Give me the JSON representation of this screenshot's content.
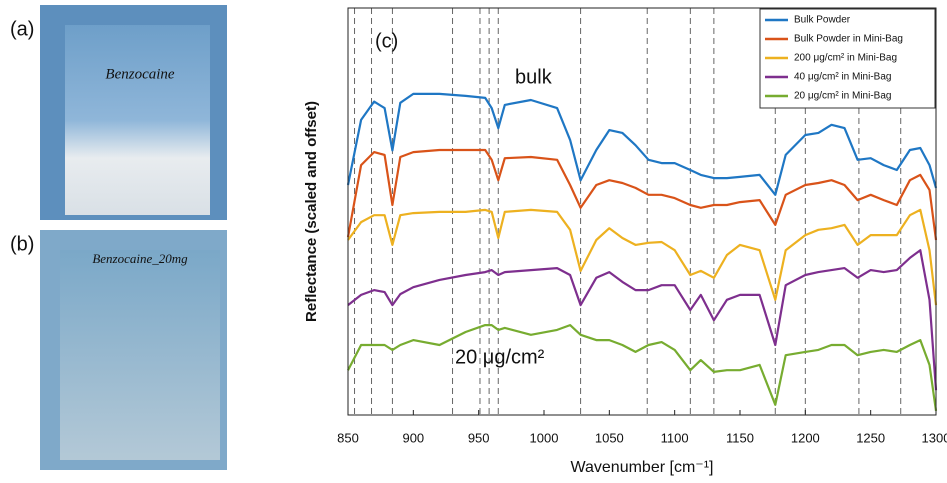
{
  "panel_labels": {
    "a": "(a)",
    "b": "(b)"
  },
  "photos": {
    "a": "Benzocaine",
    "b": "Benzocaine_20mg"
  },
  "chart_data": {
    "type": "line",
    "ylabel": "Reflectance (scaled and offset)",
    "xlabel": "Wavenumber [cm⁻¹]",
    "annotations": [
      "(c)",
      "bulk",
      "20 μg/cm²"
    ],
    "xlim": [
      850,
      1300
    ],
    "xticks": [
      850,
      900,
      950,
      1000,
      1050,
      1100,
      1150,
      1200,
      1250,
      1300
    ],
    "ylim": [
      0,
      100
    ],
    "reference_lines": [
      855,
      868,
      884,
      930,
      951,
      958,
      965,
      1028,
      1079,
      1112,
      1130,
      1177,
      1200,
      1241,
      1273
    ],
    "legend": "upper right",
    "x": [
      850,
      860,
      870,
      878,
      884,
      890,
      900,
      920,
      940,
      955,
      960,
      965,
      970,
      990,
      1010,
      1020,
      1028,
      1040,
      1050,
      1060,
      1070,
      1080,
      1090,
      1100,
      1112,
      1120,
      1130,
      1140,
      1150,
      1165,
      1177,
      1185,
      1200,
      1210,
      1220,
      1230,
      1240,
      1250,
      1260,
      1270,
      1280,
      1288,
      1295,
      1300
    ],
    "series": [
      {
        "name": "Bulk Powder",
        "color": "#1f77c4",
        "values": [
          56.5,
          72.5,
          77,
          75.4,
          65,
          76.7,
          78.9,
          78.9,
          78.4,
          77.9,
          75.4,
          70.5,
          76.2,
          77.4,
          75.4,
          67.6,
          57.7,
          65.1,
          70,
          69.3,
          66.3,
          62.7,
          61.9,
          61.9,
          60.2,
          59,
          58.2,
          58.2,
          58.5,
          59,
          54.1,
          63.9,
          68.8,
          69.3,
          71.3,
          70.5,
          62.7,
          63.1,
          61.4,
          60.2,
          65.1,
          65.6,
          61.4,
          55.8
        ]
      },
      {
        "name": "Bulk Powder in Mini-Bag",
        "color": "#d95319",
        "values": [
          43.7,
          61.4,
          64.6,
          63.9,
          51.6,
          63.4,
          64.6,
          65.1,
          65.1,
          65.1,
          62.7,
          57.7,
          63.1,
          63.4,
          62.7,
          56.5,
          50.9,
          56.5,
          57.7,
          57,
          55.8,
          54.1,
          54.1,
          53.3,
          51.6,
          50.9,
          51.6,
          51.6,
          52.3,
          52.8,
          46.7,
          54.1,
          56.5,
          57,
          57.7,
          56.5,
          52.8,
          54.1,
          52.8,
          51.6,
          57.7,
          59,
          55.3,
          43
        ]
      },
      {
        "name": "200 μg/cm² in Mini-Bag",
        "color": "#edb120",
        "values": [
          43,
          47.4,
          49.1,
          49.1,
          41.8,
          49.1,
          49.6,
          49.9,
          49.9,
          50.4,
          49.9,
          43.5,
          49.9,
          50.4,
          49.9,
          45.5,
          35.4,
          43,
          45.9,
          43.5,
          41.8,
          42.3,
          42.5,
          40.5,
          34.4,
          35.4,
          33.7,
          39.3,
          41.8,
          40.5,
          28.3,
          40.5,
          44.2,
          45.5,
          45.9,
          46.7,
          41.8,
          44.2,
          44.2,
          44.2,
          49.1,
          50.4,
          40.5,
          27
        ]
      },
      {
        "name": "40 μg/cm² in Mini-Bag",
        "color": "#7e2f8e",
        "values": [
          27,
          29.5,
          30.7,
          30.2,
          27,
          29.7,
          31.4,
          33.2,
          34.4,
          35.1,
          35.6,
          34.4,
          35.1,
          35.6,
          36.1,
          34.4,
          27,
          33.7,
          35.1,
          32.7,
          30.7,
          30.7,
          31.9,
          31.9,
          25.8,
          29.5,
          23.3,
          28.3,
          29.5,
          29.5,
          17.2,
          31.9,
          34.4,
          35.1,
          35.6,
          36.1,
          33.7,
          35.6,
          35.1,
          35.6,
          38.6,
          40.5,
          28.3,
          6.1
        ]
      },
      {
        "name": "20 μg/cm² in Mini-Bag",
        "color": "#77ac30",
        "values": [
          11,
          17.2,
          17.2,
          17.2,
          16,
          17.2,
          18.4,
          17.2,
          20.4,
          22.1,
          22.1,
          20.9,
          21.4,
          19.7,
          20.9,
          22.1,
          19.7,
          18.4,
          18.4,
          17.2,
          15.5,
          17.2,
          17.9,
          16,
          11,
          13.5,
          10.6,
          11,
          11,
          12.3,
          2.5,
          14.7,
          15.5,
          16,
          17.2,
          17.2,
          14.7,
          15.5,
          16,
          15.5,
          17.2,
          18.4,
          12.3,
          1
        ]
      }
    ]
  }
}
